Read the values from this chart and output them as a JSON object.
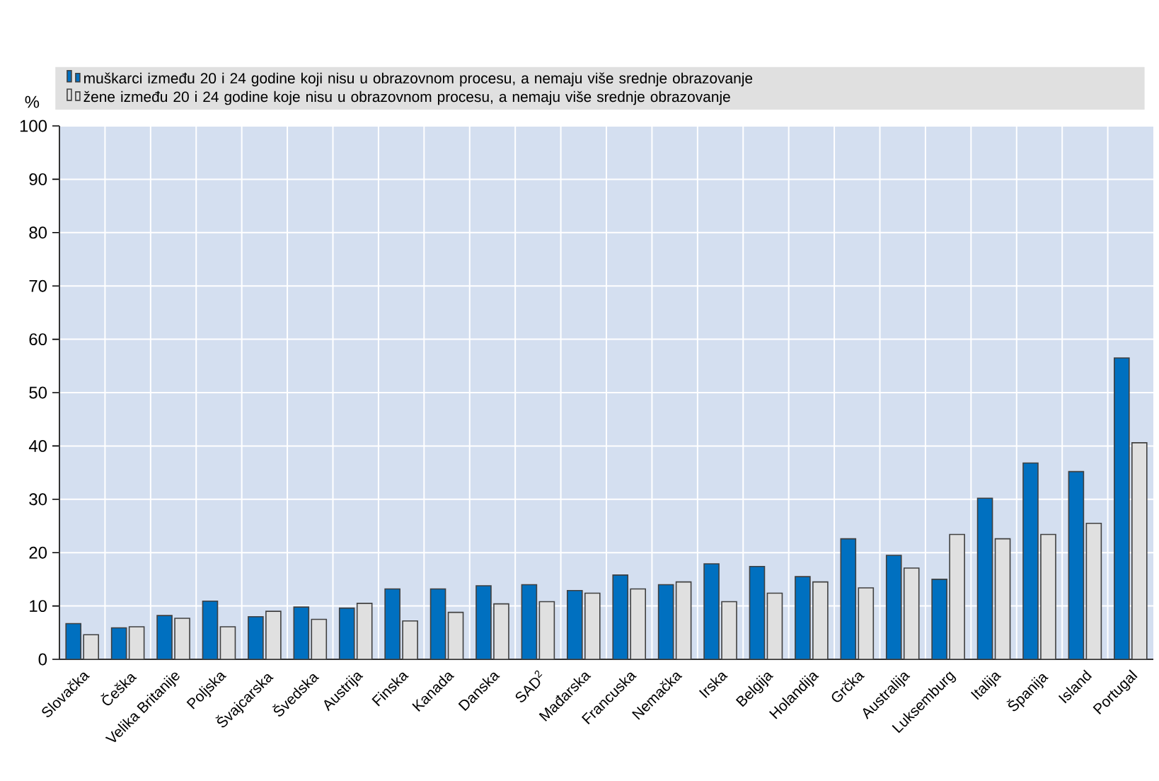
{
  "chart_data": {
    "type": "bar",
    "ylabel": "%",
    "categories": [
      "Slovačka",
      "Češka",
      "Velika Britanije",
      "Poljska",
      "Švajcarska",
      "Švedska",
      "Austrija",
      "Finska",
      "Kanada",
      "Danska",
      "SAD$^{2}$",
      "Mađarska",
      "Francuska",
      "Nemačka",
      "Irska",
      "Belgija",
      "Holandija",
      "Grčka",
      "Australija",
      "Luksemburg",
      "Italija",
      "Španija",
      "Island",
      "Portugal"
    ],
    "series": [
      {
        "name": "muškarci između 20 i 24 godine koji nisu u obrazovnom procesu, a nemaju više srednje obrazovanje",
        "color": "#0070c0",
        "values": [
          6.7,
          5.9,
          8.2,
          10.9,
          8.0,
          9.8,
          9.6,
          13.2,
          13.2,
          13.8,
          14.0,
          12.9,
          15.8,
          14.0,
          17.9,
          17.4,
          15.5,
          22.6,
          19.5,
          15.0,
          30.2,
          36.8,
          35.2,
          56.5
        ]
      },
      {
        "name": "žene između 20 i 24 godine koje nisu u obrazovnom procesu, a nemaju više srednje obrazovanje",
        "color": "#e0e0e0",
        "values": [
          4.6,
          6.1,
          7.7,
          6.1,
          9.0,
          7.5,
          10.5,
          7.2,
          8.8,
          10.4,
          10.8,
          12.4,
          13.2,
          14.5,
          10.8,
          12.4,
          14.5,
          13.4,
          17.1,
          23.4,
          22.6,
          23.4,
          25.5,
          40.6
        ]
      }
    ],
    "ylim": [
      0,
      100
    ],
    "yticks": [
      0,
      10,
      20,
      30,
      40,
      50,
      60,
      70,
      80,
      90,
      100
    ],
    "grid": true,
    "legend": "top"
  }
}
